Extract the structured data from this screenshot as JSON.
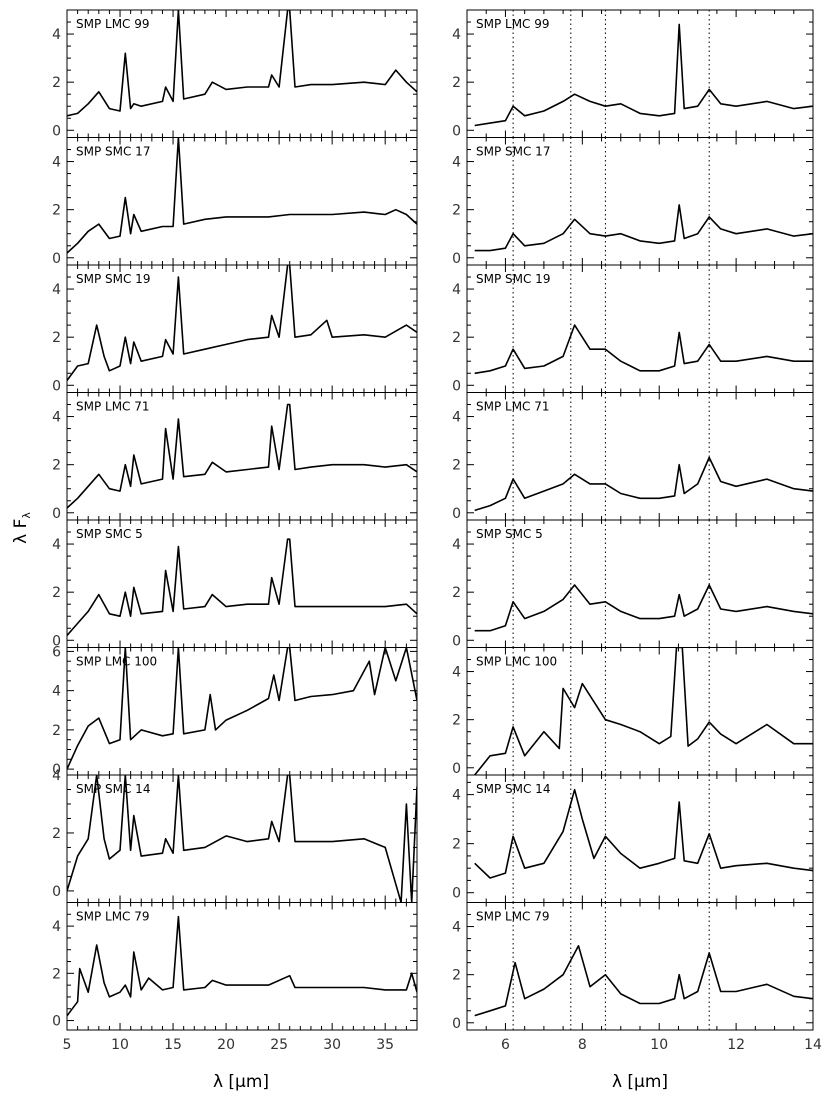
{
  "figure": {
    "ylabel_main": "λ F",
    "ylabel_sub": "λ",
    "colors": {
      "line": "#000000",
      "background": "#ffffff"
    }
  },
  "chart_data": [
    {
      "type": "line",
      "panel_group": "left",
      "xlabel": "λ [μm]",
      "xlim": [
        5,
        38
      ],
      "xticks": [
        5,
        10,
        15,
        20,
        25,
        30,
        35
      ],
      "panels": [
        {
          "name": "SMP LMC 99",
          "ylim": [
            -0.3,
            5.0
          ],
          "yticks": [
            0,
            2,
            4
          ],
          "x": [
            5,
            6,
            7,
            8,
            9,
            10,
            10.5,
            11,
            11.3,
            12,
            14,
            14.3,
            15,
            15.5,
            16,
            18,
            18.7,
            20,
            22,
            24,
            24.3,
            25,
            25.8,
            26,
            26.5,
            28,
            30,
            33,
            35,
            36,
            37,
            38
          ],
          "y": [
            0.6,
            0.7,
            1.1,
            1.6,
            0.9,
            0.8,
            3.2,
            0.9,
            1.1,
            1.0,
            1.2,
            1.8,
            1.2,
            5.0,
            1.3,
            1.5,
            2.0,
            1.7,
            1.8,
            1.8,
            2.3,
            1.8,
            5.0,
            5.0,
            1.8,
            1.9,
            1.9,
            2.0,
            1.9,
            2.5,
            2.0,
            1.6
          ]
        },
        {
          "name": "SMP SMC 17",
          "ylim": [
            -0.3,
            5.0
          ],
          "yticks": [
            0,
            2,
            4
          ],
          "x": [
            5,
            6,
            7,
            8,
            9,
            10,
            10.5,
            11,
            11.3,
            12,
            14,
            15,
            15.5,
            16,
            18,
            20,
            22,
            24,
            26,
            28,
            30,
            33,
            35,
            36,
            37,
            38
          ],
          "y": [
            0.2,
            0.6,
            1.1,
            1.4,
            0.8,
            0.9,
            2.5,
            1.0,
            1.8,
            1.1,
            1.3,
            1.3,
            5.0,
            1.4,
            1.6,
            1.7,
            1.7,
            1.7,
            1.8,
            1.8,
            1.8,
            1.9,
            1.8,
            2.0,
            1.8,
            1.4
          ]
        },
        {
          "name": "SMP SMC 19",
          "ylim": [
            -0.3,
            5.0
          ],
          "yticks": [
            0,
            2,
            4
          ],
          "x": [
            5,
            6,
            7,
            7.8,
            8.5,
            9,
            10,
            10.5,
            11,
            11.3,
            12,
            14,
            14.3,
            15,
            15.5,
            16,
            18,
            20,
            22,
            24,
            24.3,
            25,
            25.8,
            26,
            26.5,
            28,
            29.5,
            30,
            33,
            35,
            37,
            38
          ],
          "y": [
            0.2,
            0.8,
            0.9,
            2.5,
            1.2,
            0.6,
            0.8,
            2.0,
            0.9,
            1.8,
            1.0,
            1.2,
            1.9,
            1.3,
            4.5,
            1.3,
            1.5,
            1.7,
            1.9,
            2.0,
            2.9,
            2.0,
            5.0,
            5.0,
            2.0,
            2.1,
            2.7,
            2.0,
            2.1,
            2.0,
            2.5,
            2.2
          ]
        },
        {
          "name": "SMP LMC 71",
          "ylim": [
            -0.3,
            5.0
          ],
          "yticks": [
            0,
            2,
            4
          ],
          "x": [
            5,
            6,
            7,
            8,
            9,
            10,
            10.5,
            11,
            11.3,
            12,
            14,
            14.3,
            15,
            15.5,
            16,
            18,
            18.7,
            20,
            22,
            24,
            24.3,
            25,
            25.8,
            26,
            26.5,
            28,
            30,
            33,
            35,
            37,
            38
          ],
          "y": [
            0.2,
            0.6,
            1.1,
            1.6,
            1.0,
            0.9,
            2.0,
            1.1,
            2.4,
            1.2,
            1.4,
            3.5,
            1.4,
            3.9,
            1.5,
            1.6,
            2.1,
            1.7,
            1.8,
            1.9,
            3.6,
            1.8,
            4.5,
            4.5,
            1.8,
            1.9,
            2.0,
            2.0,
            1.9,
            2.0,
            1.7
          ]
        },
        {
          "name": "SMP SMC 5",
          "ylim": [
            -0.3,
            5.0
          ],
          "yticks": [
            0,
            2,
            4
          ],
          "x": [
            5,
            6,
            7,
            8,
            9,
            10,
            10.5,
            11,
            11.3,
            12,
            14,
            14.3,
            15,
            15.5,
            16,
            18,
            18.7,
            20,
            22,
            24,
            24.3,
            25,
            25.8,
            26,
            26.5,
            28,
            30,
            33,
            35,
            37,
            38
          ],
          "y": [
            0.2,
            0.7,
            1.2,
            1.9,
            1.1,
            1.0,
            2.0,
            1.0,
            2.2,
            1.1,
            1.2,
            2.9,
            1.2,
            3.9,
            1.3,
            1.4,
            1.9,
            1.4,
            1.5,
            1.5,
            2.6,
            1.5,
            4.2,
            4.2,
            1.4,
            1.4,
            1.4,
            1.4,
            1.4,
            1.5,
            1.1
          ]
        },
        {
          "name": "SMP LMC 100",
          "ylim": [
            -0.3,
            6.2
          ],
          "yticks": [
            0,
            2,
            4,
            6
          ],
          "x": [
            5,
            6,
            7,
            8,
            9,
            10,
            10.5,
            11,
            12,
            14,
            15,
            15.5,
            16,
            18,
            18.5,
            19,
            20,
            22,
            24,
            24.5,
            25,
            25.8,
            26,
            26.5,
            28,
            30,
            32,
            33.5,
            34,
            35,
            36,
            37,
            38
          ],
          "y": [
            0.0,
            1.2,
            2.2,
            2.6,
            1.3,
            1.5,
            6.2,
            1.5,
            2.0,
            1.7,
            1.8,
            6.2,
            1.8,
            2.0,
            3.8,
            2.0,
            2.5,
            3.0,
            3.6,
            4.8,
            3.5,
            6.2,
            6.2,
            3.5,
            3.7,
            3.8,
            4.0,
            5.5,
            3.8,
            6.2,
            4.5,
            6.2,
            3.5
          ]
        },
        {
          "name": "SMP SMC 14",
          "ylim": [
            -0.4,
            4.0
          ],
          "yticks": [
            0,
            2,
            4
          ],
          "x": [
            5,
            6,
            7,
            7.8,
            8.5,
            9,
            10,
            10.5,
            11,
            11.3,
            12,
            14,
            14.3,
            15,
            15.5,
            16,
            18,
            20,
            22,
            24,
            24.3,
            25,
            25.8,
            26,
            26.5,
            28,
            30,
            33,
            35,
            36.5,
            37,
            37.5,
            38
          ],
          "y": [
            0.0,
            1.2,
            1.8,
            4.0,
            1.8,
            1.1,
            1.4,
            4.0,
            1.4,
            2.6,
            1.2,
            1.3,
            1.8,
            1.3,
            4.0,
            1.4,
            1.5,
            1.9,
            1.7,
            1.8,
            2.4,
            1.7,
            4.0,
            4.0,
            1.7,
            1.7,
            1.7,
            1.8,
            1.5,
            -0.4,
            3.0,
            -0.4,
            3.6
          ]
        },
        {
          "name": "SMP LMC 79",
          "ylim": [
            -0.4,
            5.0
          ],
          "yticks": [
            0,
            2,
            4
          ],
          "x": [
            5,
            6,
            6.2,
            7,
            7.8,
            8.5,
            9,
            10,
            10.5,
            11,
            11.3,
            12,
            12.7,
            14,
            15,
            15.5,
            16,
            18,
            18.7,
            20,
            22,
            24,
            26,
            26.5,
            28,
            30,
            33,
            35,
            37,
            37.5,
            38
          ],
          "y": [
            0.2,
            0.8,
            2.2,
            1.2,
            3.2,
            1.6,
            1.0,
            1.2,
            1.5,
            1.0,
            2.9,
            1.3,
            1.8,
            1.3,
            1.4,
            4.4,
            1.3,
            1.4,
            1.7,
            1.5,
            1.5,
            1.5,
            1.9,
            1.4,
            1.4,
            1.4,
            1.4,
            1.3,
            1.3,
            2.0,
            1.2
          ]
        }
      ]
    },
    {
      "type": "line",
      "panel_group": "right",
      "xlabel": "λ [μm]",
      "xlim": [
        5,
        14
      ],
      "xticks": [
        6,
        8,
        10,
        12,
        14
      ],
      "reference_lines_x": [
        6.2,
        7.7,
        8.6,
        11.3
      ],
      "panels": [
        {
          "name": "SMP LMC 99",
          "ylim": [
            -0.3,
            5.0
          ],
          "yticks": [
            0,
            2,
            4
          ],
          "x": [
            5.2,
            5.6,
            6.0,
            6.2,
            6.5,
            7.0,
            7.5,
            7.8,
            8.2,
            8.6,
            9.0,
            9.5,
            10.0,
            10.4,
            10.52,
            10.65,
            11.0,
            11.3,
            11.6,
            12.0,
            12.8,
            13.5,
            14.0
          ],
          "y": [
            0.2,
            0.3,
            0.4,
            1.0,
            0.6,
            0.8,
            1.2,
            1.5,
            1.2,
            1.0,
            1.1,
            0.7,
            0.6,
            0.7,
            4.4,
            0.9,
            1.0,
            1.7,
            1.1,
            1.0,
            1.2,
            0.9,
            1.0
          ]
        },
        {
          "name": "SMP SMC 17",
          "ylim": [
            -0.3,
            5.0
          ],
          "yticks": [
            0,
            2,
            4
          ],
          "x": [
            5.2,
            5.6,
            6.0,
            6.2,
            6.5,
            7.0,
            7.5,
            7.8,
            8.2,
            8.6,
            9.0,
            9.5,
            10.0,
            10.4,
            10.52,
            10.65,
            11.0,
            11.3,
            11.6,
            12.0,
            12.8,
            13.5,
            14.0
          ],
          "y": [
            0.3,
            0.3,
            0.4,
            1.0,
            0.5,
            0.6,
            1.0,
            1.6,
            1.0,
            0.9,
            1.0,
            0.7,
            0.6,
            0.7,
            2.2,
            0.8,
            1.0,
            1.7,
            1.2,
            1.0,
            1.2,
            0.9,
            1.0
          ]
        },
        {
          "name": "SMP SMC 19",
          "ylim": [
            -0.3,
            5.0
          ],
          "yticks": [
            0,
            2,
            4
          ],
          "x": [
            5.2,
            5.6,
            6.0,
            6.2,
            6.5,
            7.0,
            7.5,
            7.8,
            8.2,
            8.6,
            9.0,
            9.5,
            10.0,
            10.4,
            10.52,
            10.65,
            11.0,
            11.3,
            11.6,
            12.0,
            12.8,
            13.5,
            14.0
          ],
          "y": [
            0.5,
            0.6,
            0.8,
            1.5,
            0.7,
            0.8,
            1.2,
            2.5,
            1.5,
            1.5,
            1.0,
            0.6,
            0.6,
            0.8,
            2.2,
            0.9,
            1.0,
            1.7,
            1.0,
            1.0,
            1.2,
            1.0,
            1.0
          ]
        },
        {
          "name": "SMP LMC 71",
          "ylim": [
            -0.3,
            5.0
          ],
          "yticks": [
            0,
            2,
            4
          ],
          "x": [
            5.2,
            5.6,
            6.0,
            6.2,
            6.5,
            7.0,
            7.5,
            7.8,
            8.2,
            8.6,
            9.0,
            9.5,
            10.0,
            10.4,
            10.52,
            10.65,
            11.0,
            11.3,
            11.6,
            12.0,
            12.8,
            13.5,
            14.0
          ],
          "y": [
            0.1,
            0.3,
            0.6,
            1.4,
            0.6,
            0.9,
            1.2,
            1.6,
            1.2,
            1.2,
            0.8,
            0.6,
            0.6,
            0.7,
            2.0,
            0.8,
            1.2,
            2.3,
            1.3,
            1.1,
            1.4,
            1.0,
            0.9
          ]
        },
        {
          "name": "SMP SMC 5",
          "ylim": [
            -0.3,
            5.0
          ],
          "yticks": [
            0,
            2,
            4
          ],
          "x": [
            5.2,
            5.6,
            6.0,
            6.2,
            6.5,
            7.0,
            7.5,
            7.8,
            8.2,
            8.6,
            9.0,
            9.5,
            10.0,
            10.4,
            10.52,
            10.65,
            11.0,
            11.3,
            11.6,
            12.0,
            12.8,
            13.5,
            14.0
          ],
          "y": [
            0.4,
            0.4,
            0.6,
            1.6,
            0.9,
            1.2,
            1.7,
            2.3,
            1.5,
            1.6,
            1.2,
            0.9,
            0.9,
            1.0,
            1.9,
            1.0,
            1.3,
            2.3,
            1.3,
            1.2,
            1.4,
            1.2,
            1.1
          ]
        },
        {
          "name": "SMP LMC 100",
          "ylim": [
            -0.3,
            5.0
          ],
          "yticks": [
            0,
            2,
            4
          ],
          "x": [
            5.2,
            5.6,
            6.0,
            6.2,
            6.5,
            7.0,
            7.4,
            7.5,
            7.8,
            8.0,
            8.6,
            9.0,
            9.5,
            10.0,
            10.3,
            10.45,
            10.6,
            10.75,
            11.0,
            11.3,
            11.6,
            12.0,
            12.8,
            13.5,
            14.0
          ],
          "y": [
            -0.3,
            0.5,
            0.6,
            1.7,
            0.5,
            1.5,
            0.8,
            3.3,
            2.5,
            3.5,
            2.0,
            1.8,
            1.5,
            1.0,
            1.3,
            5.0,
            5.0,
            0.9,
            1.2,
            1.9,
            1.4,
            1.0,
            1.8,
            1.0,
            1.0
          ]
        },
        {
          "name": "SMP SMC 14",
          "ylim": [
            -0.4,
            4.8
          ],
          "yticks": [
            0,
            2,
            4
          ],
          "x": [
            5.2,
            5.6,
            6.0,
            6.2,
            6.5,
            7.0,
            7.5,
            7.8,
            8.0,
            8.3,
            8.6,
            9.0,
            9.5,
            10.0,
            10.4,
            10.52,
            10.65,
            11.0,
            11.3,
            11.6,
            12.0,
            12.8,
            13.5,
            14.0
          ],
          "y": [
            1.2,
            0.6,
            0.8,
            2.3,
            1.0,
            1.2,
            2.5,
            4.2,
            3.0,
            1.4,
            2.3,
            1.6,
            1.0,
            1.2,
            1.4,
            3.7,
            1.3,
            1.2,
            2.4,
            1.0,
            1.1,
            1.2,
            1.0,
            0.9
          ]
        },
        {
          "name": "SMP LMC 79",
          "ylim": [
            -0.3,
            5.0
          ],
          "yticks": [
            0,
            2,
            4
          ],
          "x": [
            5.2,
            5.6,
            6.0,
            6.25,
            6.5,
            7.0,
            7.5,
            7.9,
            8.2,
            8.6,
            9.0,
            9.5,
            10.0,
            10.4,
            10.52,
            10.65,
            11.0,
            11.3,
            11.6,
            12.0,
            12.8,
            13.5,
            14.0
          ],
          "y": [
            0.3,
            0.5,
            0.7,
            2.5,
            1.0,
            1.4,
            2.0,
            3.2,
            1.5,
            2.0,
            1.2,
            0.8,
            0.8,
            1.0,
            2.0,
            1.0,
            1.3,
            2.9,
            1.3,
            1.3,
            1.6,
            1.1,
            1.0
          ]
        }
      ]
    }
  ]
}
